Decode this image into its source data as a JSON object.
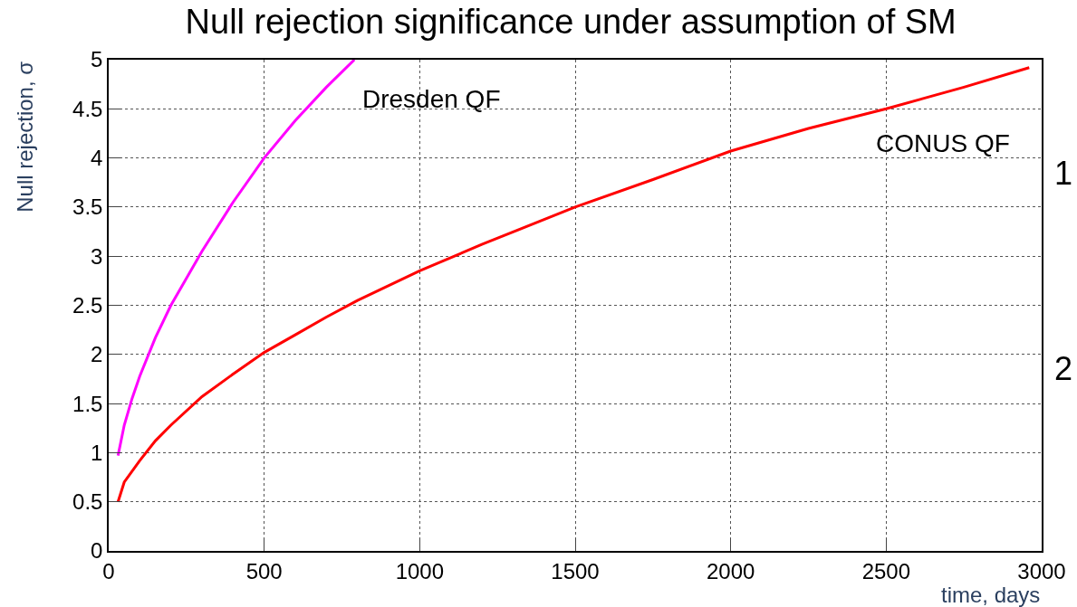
{
  "chart_data": {
    "type": "line",
    "title": "Null rejection significance under assumption of SM",
    "xlabel": "time, days",
    "ylabel": "Null rejection, σ",
    "series": [
      {
        "name": "Dresden QF",
        "color": "#ff00ff",
        "x": [
          30,
          50,
          75,
          100,
          150,
          200,
          300,
          400,
          500,
          600,
          700,
          790
        ],
        "values": [
          0.97,
          1.28,
          1.55,
          1.78,
          2.17,
          2.5,
          3.05,
          3.55,
          4.0,
          4.38,
          4.72,
          5.0
        ]
      },
      {
        "name": "CONUS QF",
        "color": "#ff0000",
        "x": [
          30,
          50,
          100,
          150,
          200,
          300,
          400,
          500,
          600,
          700,
          800,
          1000,
          1200,
          1500,
          1750,
          2000,
          2250,
          2500,
          2750,
          2960
        ],
        "values": [
          0.5,
          0.7,
          0.92,
          1.12,
          1.28,
          1.57,
          1.8,
          2.02,
          2.2,
          2.38,
          2.55,
          2.85,
          3.12,
          3.5,
          3.78,
          4.07,
          4.3,
          4.5,
          4.72,
          4.92
        ]
      }
    ],
    "annotations": [
      "1",
      "2"
    ],
    "xlim": [
      0,
      3000
    ],
    "xticks": [
      0,
      500,
      1000,
      1500,
      2000,
      2500,
      3000
    ],
    "ylim": [
      0,
      5
    ],
    "yticks": [
      0,
      0.5,
      1,
      1.5,
      2,
      2.5,
      3,
      3.5,
      4,
      4.5,
      5
    ],
    "grid": true,
    "legend": false,
    "marker": "none",
    "line_style": "solid"
  }
}
